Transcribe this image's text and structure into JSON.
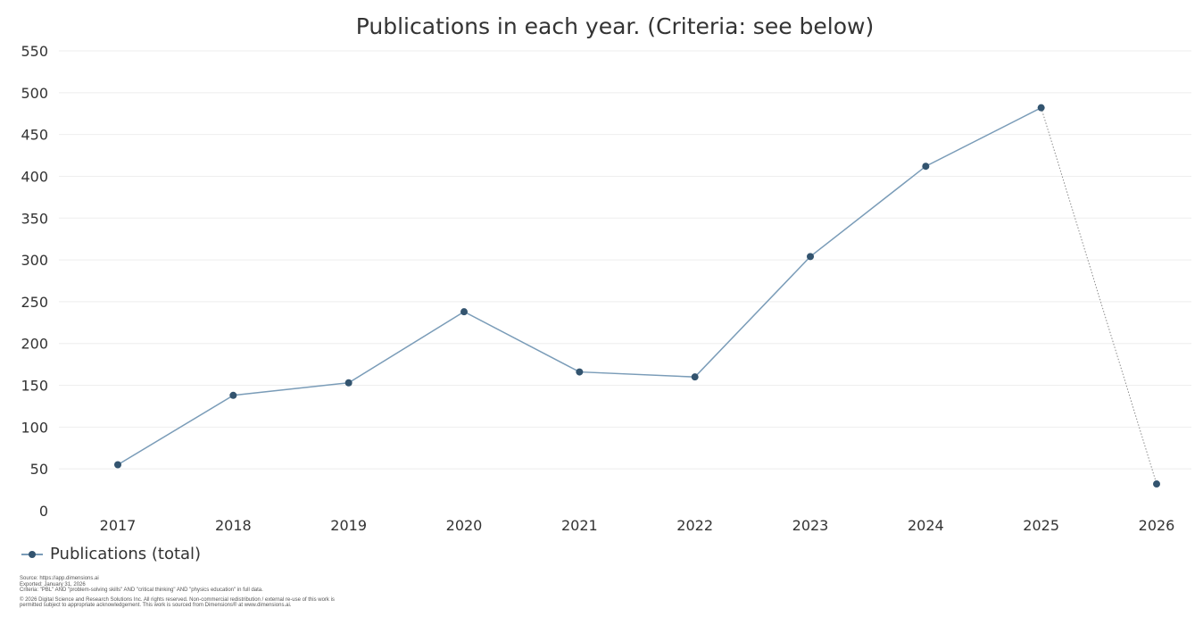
{
  "chart_data": {
    "type": "line",
    "title": "Publications in each year. (Criteria: see below)",
    "xlabel": "",
    "ylabel": "",
    "categories": [
      "2017",
      "2018",
      "2019",
      "2020",
      "2021",
      "2022",
      "2023",
      "2024",
      "2025",
      "2026"
    ],
    "series": [
      {
        "name": "Publications (total)",
        "values": [
          55,
          138,
          153,
          238,
          166,
          160,
          304,
          412,
          482,
          32
        ],
        "color": "#7a9cb8",
        "marker_color": "#33546f",
        "dotted_last_segment": true
      }
    ],
    "ylim": [
      0,
      550
    ],
    "yticks": [
      "0",
      "50",
      "100",
      "150",
      "200",
      "250",
      "300",
      "350",
      "400",
      "450",
      "500",
      "550"
    ],
    "ytick_values": [
      0,
      50,
      100,
      150,
      200,
      250,
      300,
      350,
      400,
      450,
      500,
      550
    ],
    "grid": true,
    "legend_position": "bottom-left"
  },
  "footer": {
    "source": "Source: https://app.dimensions.ai",
    "exported": "Exported: January 31, 2026",
    "criteria": "Criteria: \"PBL\" AND \"problem-solving skills\" AND \"critical thinking\" AND \"physics education\" in full data.",
    "copyright_1": "© 2026 Digital Science and Research Solutions Inc. All rights reserved. Non-commercial redistribution / external re-use of this work is",
    "copyright_2": "permitted subject to appropriate acknowledgement. This work is sourced from Dimensions® at www.dimensions.ai."
  }
}
